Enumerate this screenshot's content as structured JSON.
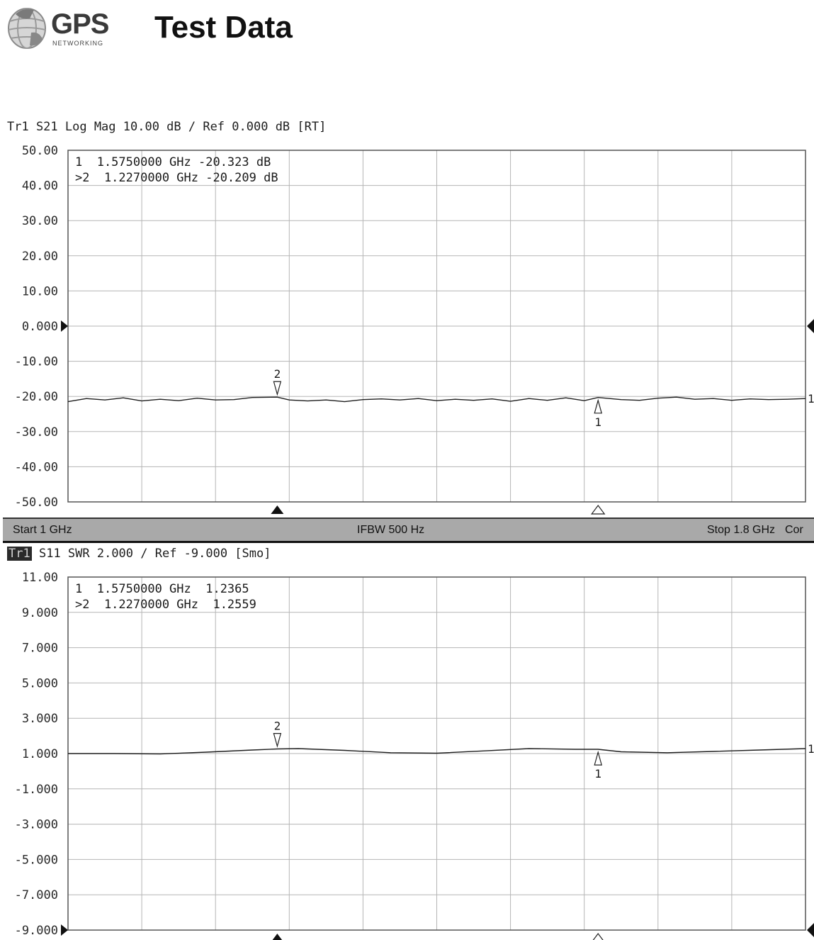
{
  "header": {
    "logo_text": "GPS",
    "logo_subtext": "NETWORKING",
    "title": "Test Data"
  },
  "status_bar": {
    "start": "Start 1 GHz",
    "ifbw": "IFBW 500 Hz",
    "stop": "Stop 1.8 GHz",
    "cor": "Cor"
  },
  "chart_data": [
    {
      "type": "line",
      "header": "Tr1 S21 Log Mag 10.00 dB / Ref 0.000 dB [RT]",
      "yticks": [
        "50.00",
        "40.00",
        "30.00",
        "20.00",
        "10.00",
        "0.000",
        "-10.00",
        "-20.00",
        "-30.00",
        "-40.00",
        "-50.00"
      ],
      "ylim": [
        -50,
        50
      ],
      "xlim": [
        1.0,
        1.8
      ],
      "x_unit": "GHz",
      "ref_level": 0,
      "grid": true,
      "marker_readouts": [
        "1  1.5750000 GHz -20.323 dB",
        ">2  1.2270000 GHz -20.209 dB"
      ],
      "markers": [
        {
          "label": "1",
          "x": 1.575,
          "y": -20.323
        },
        {
          "label": "2",
          "x": 1.227,
          "y": -20.209
        }
      ],
      "series": [
        {
          "end_label": "1",
          "x": [
            1.0,
            1.02,
            1.04,
            1.06,
            1.08,
            1.1,
            1.12,
            1.14,
            1.16,
            1.18,
            1.2,
            1.227,
            1.24,
            1.26,
            1.28,
            1.3,
            1.32,
            1.34,
            1.36,
            1.38,
            1.4,
            1.42,
            1.44,
            1.46,
            1.48,
            1.5,
            1.52,
            1.54,
            1.56,
            1.575,
            1.6,
            1.62,
            1.64,
            1.66,
            1.68,
            1.7,
            1.72,
            1.74,
            1.76,
            1.78,
            1.8
          ],
          "y": [
            -21.5,
            -20.6,
            -21.0,
            -20.4,
            -21.3,
            -20.8,
            -21.2,
            -20.5,
            -21.0,
            -20.9,
            -20.3,
            -20.2,
            -21.0,
            -21.3,
            -21.0,
            -21.5,
            -20.9,
            -20.7,
            -21.0,
            -20.6,
            -21.2,
            -20.8,
            -21.1,
            -20.7,
            -21.4,
            -20.6,
            -21.1,
            -20.4,
            -21.2,
            -20.3,
            -20.9,
            -21.1,
            -20.5,
            -20.2,
            -20.8,
            -20.6,
            -21.1,
            -20.7,
            -20.9,
            -20.8,
            -20.6
          ]
        }
      ]
    },
    {
      "type": "line",
      "header_badge": "Tr1",
      "header": "S11 SWR 2.000 / Ref -9.000 [Smo]",
      "yticks": [
        "11.00",
        "9.000",
        "7.000",
        "5.000",
        "3.000",
        "1.000",
        "-1.000",
        "-3.000",
        "-5.000",
        "-7.000",
        "-9.000"
      ],
      "ylim": [
        -9,
        11
      ],
      "xlim": [
        1.0,
        1.8
      ],
      "x_unit": "GHz",
      "ref_level": -9,
      "grid": true,
      "marker_readouts": [
        "1  1.5750000 GHz  1.2365",
        ">2  1.2270000 GHz  1.2559"
      ],
      "markers": [
        {
          "label": "1",
          "x": 1.575,
          "y": 1.2365
        },
        {
          "label": "2",
          "x": 1.227,
          "y": 1.2559
        }
      ],
      "series": [
        {
          "end_label": "1",
          "x": [
            1.0,
            1.05,
            1.1,
            1.15,
            1.2,
            1.227,
            1.25,
            1.3,
            1.35,
            1.4,
            1.45,
            1.5,
            1.55,
            1.575,
            1.6,
            1.65,
            1.7,
            1.75,
            1.8
          ],
          "y": [
            1.0,
            1.0,
            0.98,
            1.08,
            1.2,
            1.26,
            1.28,
            1.18,
            1.05,
            1.02,
            1.15,
            1.28,
            1.24,
            1.24,
            1.1,
            1.05,
            1.12,
            1.2,
            1.28
          ]
        }
      ]
    }
  ]
}
